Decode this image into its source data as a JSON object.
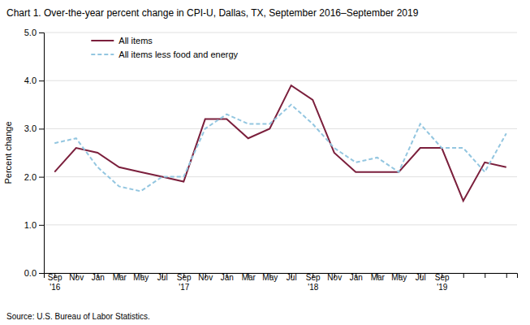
{
  "chart_data": {
    "type": "line",
    "title": "Chart 1. Over-the-year percent change in CPI-U, Dallas, TX, September 2016–September 2019",
    "y_label": "Percent change",
    "annotations": [
      "Source: U.S. Bureau of Labor Statistics."
    ],
    "categories": [
      "Sep\n'16",
      "Nov",
      "Jan",
      "Mar",
      "May",
      "Jul",
      "Sep\n'17",
      "Nov",
      "Jan",
      "Mar",
      "May",
      "Jul",
      "Sep\n'18",
      "Nov",
      "Jan",
      "Mar",
      "May",
      "Jul",
      "Sep\n'19",
      null,
      null,
      null
    ],
    "series": [
      {
        "name": "All items",
        "color": "#7B1F3C",
        "line_style": "solid",
        "values": [
          2.1,
          2.6,
          2.5,
          2.2,
          2.1,
          2.0,
          1.9,
          3.2,
          3.2,
          2.8,
          3.0,
          3.9,
          3.6,
          2.5,
          2.1,
          2.1,
          2.1,
          2.6,
          2.6,
          1.5,
          2.3,
          2.2
        ]
      },
      {
        "name": "All items less food and energy",
        "color": "#93C6E0",
        "line_style": "dashed",
        "values": [
          2.7,
          2.8,
          2.2,
          1.8,
          1.7,
          2.0,
          2.0,
          3.0,
          3.3,
          3.1,
          3.1,
          3.5,
          3.1,
          2.6,
          2.3,
          2.4,
          2.1,
          3.1,
          2.6,
          2.6,
          2.1,
          2.9
        ]
      }
    ],
    "ylim": [
      0.0,
      5.0
    ],
    "yticks": [
      {
        "value": 0,
        "label": "0.0"
      },
      {
        "value": 1,
        "label": "1.0"
      },
      {
        "value": 2,
        "label": "2.0"
      },
      {
        "value": 3,
        "label": "3.0"
      },
      {
        "value": 4,
        "label": "4.0"
      },
      {
        "value": 5,
        "label": "5.0"
      }
    ],
    "grid": true,
    "legend": "upper left"
  }
}
